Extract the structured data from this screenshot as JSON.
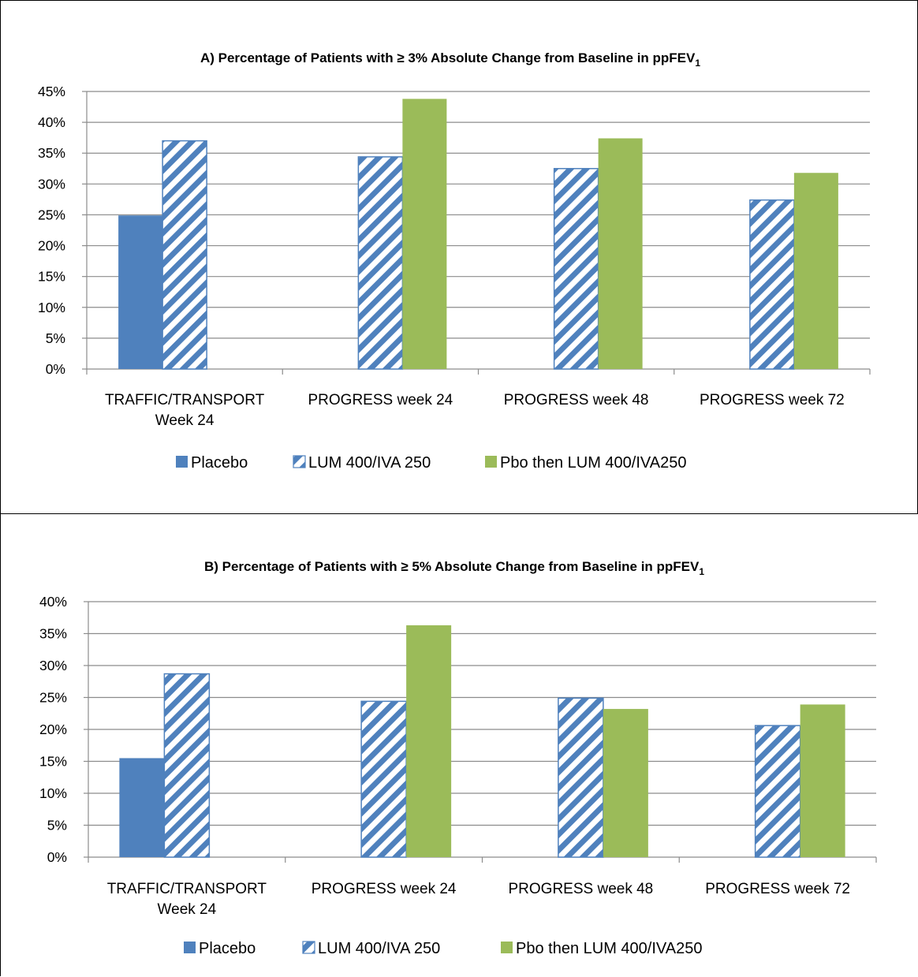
{
  "chart_data": [
    {
      "type": "bar",
      "title": "A) Percentage of Patients with ≥ 3% Absolute Change from Baseline in ppFEV",
      "title_subscript": "1",
      "categories": [
        [
          "TRAFFIC/TRANSPORT",
          "Week 24"
        ],
        [
          "PROGRESS week 24"
        ],
        [
          "PROGRESS week 48"
        ],
        [
          "PROGRESS week 72"
        ]
      ],
      "ylim": [
        0,
        45
      ],
      "ytick_step": 5,
      "ytick_suffix": "%",
      "grid": true,
      "legend_position": "bottom",
      "series": [
        {
          "name": "Placebo",
          "values": [
            24.9,
            null,
            null,
            null
          ],
          "color": "#4f81bd",
          "pattern": "solid"
        },
        {
          "name": "LUM 400/IVA 250",
          "values": [
            37.0,
            34.4,
            32.5,
            27.4
          ],
          "color": "#4f81bd",
          "pattern": "diagonal-stripes"
        },
        {
          "name": "Pbo then LUM 400/IVA250",
          "values": [
            null,
            43.8,
            37.4,
            31.8
          ],
          "color": "#9bbb59",
          "pattern": "solid"
        }
      ]
    },
    {
      "type": "bar",
      "title": "B) Percentage of Patients with ≥ 5% Absolute Change from Baseline in ppFEV",
      "title_subscript": "1",
      "categories": [
        [
          "TRAFFIC/TRANSPORT",
          "Week 24"
        ],
        [
          "PROGRESS week 24"
        ],
        [
          "PROGRESS week 48"
        ],
        [
          "PROGRESS week 72"
        ]
      ],
      "ylim": [
        0,
        40
      ],
      "ytick_step": 5,
      "ytick_suffix": "%",
      "grid": true,
      "legend_position": "bottom",
      "series": [
        {
          "name": "Placebo",
          "values": [
            15.5,
            null,
            null,
            null
          ],
          "color": "#4f81bd",
          "pattern": "solid"
        },
        {
          "name": "LUM 400/IVA 250",
          "values": [
            28.7,
            24.4,
            24.9,
            20.6
          ],
          "color": "#4f81bd",
          "pattern": "diagonal-stripes"
        },
        {
          "name": "Pbo then LUM 400/IVA250",
          "values": [
            null,
            36.3,
            23.2,
            23.9
          ],
          "color": "#9bbb59",
          "pattern": "solid"
        }
      ]
    }
  ]
}
